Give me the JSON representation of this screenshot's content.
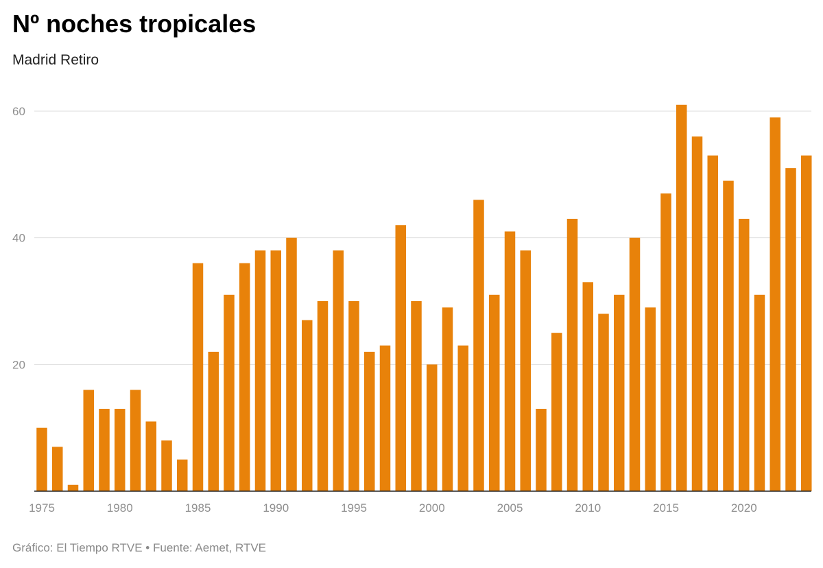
{
  "header": {
    "title": "Nº noches tropicales",
    "subtitle": "Madrid Retiro"
  },
  "footer": {
    "source": "Gráfico: El Tiempo RTVE • Fuente: Aemet, RTVE"
  },
  "colors": {
    "bar": "#E8820A",
    "grid": "#dddddd",
    "axis": "#222222",
    "tick_text": "#8f8f8f"
  },
  "chart_data": {
    "type": "bar",
    "title": "Nº noches tropicales",
    "subtitle": "Madrid Retiro",
    "xlabel": "",
    "ylabel": "",
    "ylim": [
      0,
      60
    ],
    "yticks": [
      20,
      40,
      60
    ],
    "xticks": [
      1975,
      1980,
      1985,
      1990,
      1995,
      2000,
      2005,
      2010,
      2015,
      2020
    ],
    "grid": true,
    "legend": "none",
    "categories": [
      1975,
      1976,
      1977,
      1978,
      1979,
      1980,
      1981,
      1982,
      1983,
      1984,
      1985,
      1986,
      1987,
      1988,
      1989,
      1990,
      1991,
      1992,
      1993,
      1994,
      1995,
      1996,
      1997,
      1998,
      1999,
      2000,
      2001,
      2002,
      2003,
      2004,
      2005,
      2006,
      2007,
      2008,
      2009,
      2010,
      2011,
      2012,
      2013,
      2014,
      2015,
      2016,
      2017,
      2018,
      2019,
      2020,
      2021,
      2022,
      2023,
      2024
    ],
    "values": [
      10,
      7,
      1,
      16,
      13,
      13,
      16,
      11,
      8,
      5,
      36,
      22,
      31,
      36,
      38,
      38,
      40,
      27,
      30,
      38,
      30,
      22,
      23,
      42,
      30,
      20,
      29,
      23,
      46,
      31,
      41,
      38,
      13,
      25,
      43,
      33,
      28,
      31,
      40,
      29,
      47,
      61,
      56,
      53,
      49,
      43,
      31,
      59,
      51,
      53
    ]
  }
}
